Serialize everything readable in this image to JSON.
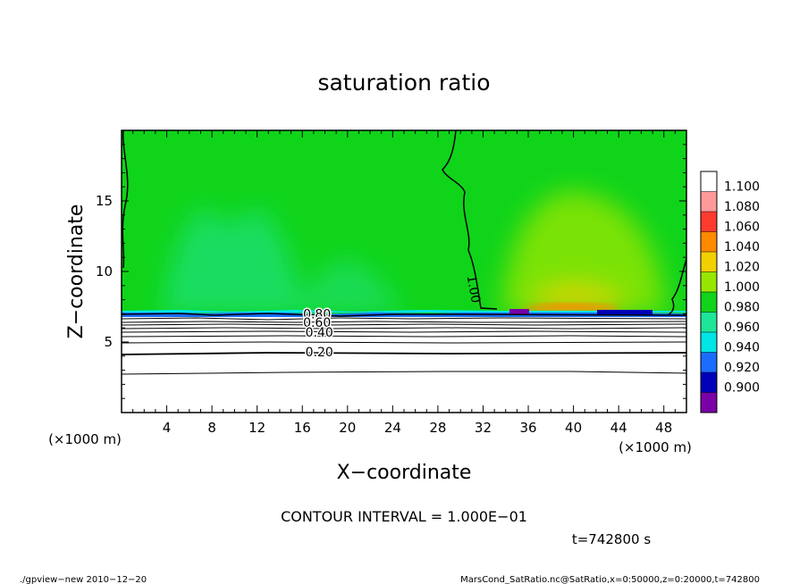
{
  "chart_data": {
    "type": "heatmap",
    "title": "saturation ratio",
    "xlabel": "X−coordinate",
    "ylabel": "Z−coordinate",
    "x_unit_left": "(×1000 m)",
    "x_unit_right": "(×1000 m)",
    "xlim": [
      0,
      50
    ],
    "ylim": [
      0,
      20
    ],
    "x_ticks": [
      4,
      8,
      12,
      16,
      20,
      24,
      28,
      32,
      36,
      40,
      44,
      48
    ],
    "x_tick_labels": [
      "4",
      "8",
      "12",
      "16",
      "20",
      "24",
      "28",
      "32",
      "36",
      "40",
      "44",
      "48"
    ],
    "y_ticks": [
      5,
      10,
      15
    ],
    "y_tick_labels": [
      "5",
      "10",
      "15"
    ],
    "colorbar": {
      "levels": [
        "1.100",
        "1.080",
        "1.060",
        "1.040",
        "1.020",
        "1.000",
        "0.980",
        "0.960",
        "0.940",
        "0.920",
        "0.900"
      ],
      "colors": [
        "#ffffff",
        "#ff9a9a",
        "#ff3b2e",
        "#ff8a00",
        "#f2d000",
        "#96e600",
        "#10d41a",
        "#1ee59a",
        "#00e5e5",
        "#1a6dff",
        "#0000b8",
        "#7a00a8"
      ]
    },
    "contour_labels": [
      {
        "text": "1.00",
        "x": 30.8,
        "z": 8.7
      },
      {
        "text": "0.80",
        "x": 17.3,
        "z": 7.0
      },
      {
        "text": "0.60",
        "x": 17.3,
        "z": 6.4
      },
      {
        "text": "0.40",
        "x": 17.5,
        "z": 5.7
      },
      {
        "text": "0.20",
        "x": 17.5,
        "z": 4.3
      }
    ],
    "contour_interval_text": "CONTOUR INTERVAL = 1.000E−01"
  },
  "annotations": {
    "time": "t=742800 s",
    "footer_left": "./gpview−new   2010−12−20",
    "footer_right": "MarsCond_SatRatio.nc@SatRatio,x=0:50000,z=0:20000,t=742800"
  }
}
